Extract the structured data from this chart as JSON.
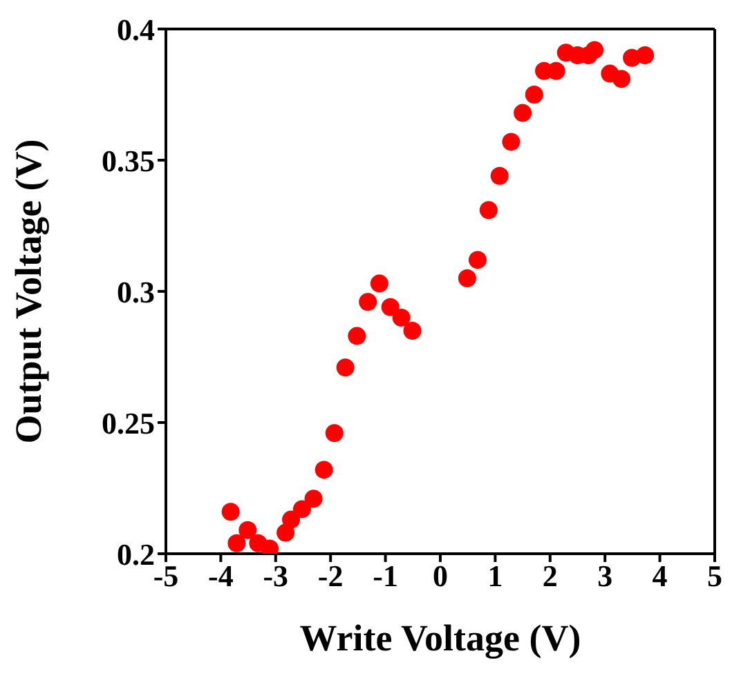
{
  "chart_data": {
    "type": "scatter",
    "xlabel": "Write Voltage (V)",
    "ylabel": "Output Voltage (V)",
    "x": [
      -3.82,
      -3.71,
      -3.51,
      -3.32,
      -3.11,
      -2.82,
      -2.72,
      -2.52,
      -2.31,
      -2.12,
      -1.93,
      -1.73,
      -1.52,
      -1.32,
      -1.11,
      -0.91,
      -0.71,
      -0.51,
      0.49,
      0.68,
      0.88,
      1.08,
      1.29,
      1.5,
      1.71,
      1.89,
      2.11,
      2.29,
      2.5,
      2.7,
      2.81,
      3.09,
      3.3,
      3.49,
      3.73
    ],
    "series": [
      {
        "color": "#ff0000",
        "values": [
          0.216,
          0.204,
          0.209,
          0.204,
          0.202,
          0.208,
          0.213,
          0.217,
          0.221,
          0.232,
          0.246,
          0.271,
          0.283,
          0.296,
          0.303,
          0.294,
          0.29,
          0.285,
          0.305,
          0.312,
          0.331,
          0.344,
          0.357,
          0.368,
          0.375,
          0.384,
          0.384,
          0.391,
          0.39,
          0.39,
          0.392,
          0.383,
          0.381,
          0.389,
          0.39
        ]
      }
    ],
    "xlim": [
      -5,
      5
    ],
    "xticks": [
      -5,
      -4,
      -3,
      -2,
      -1,
      0,
      1,
      2,
      3,
      4,
      5
    ],
    "ylim": [
      0.2,
      0.4
    ],
    "yticks": [
      0.2,
      0.25,
      0.3,
      0.35,
      0.4
    ],
    "marker": "circle",
    "grid": false,
    "legend": false
  }
}
